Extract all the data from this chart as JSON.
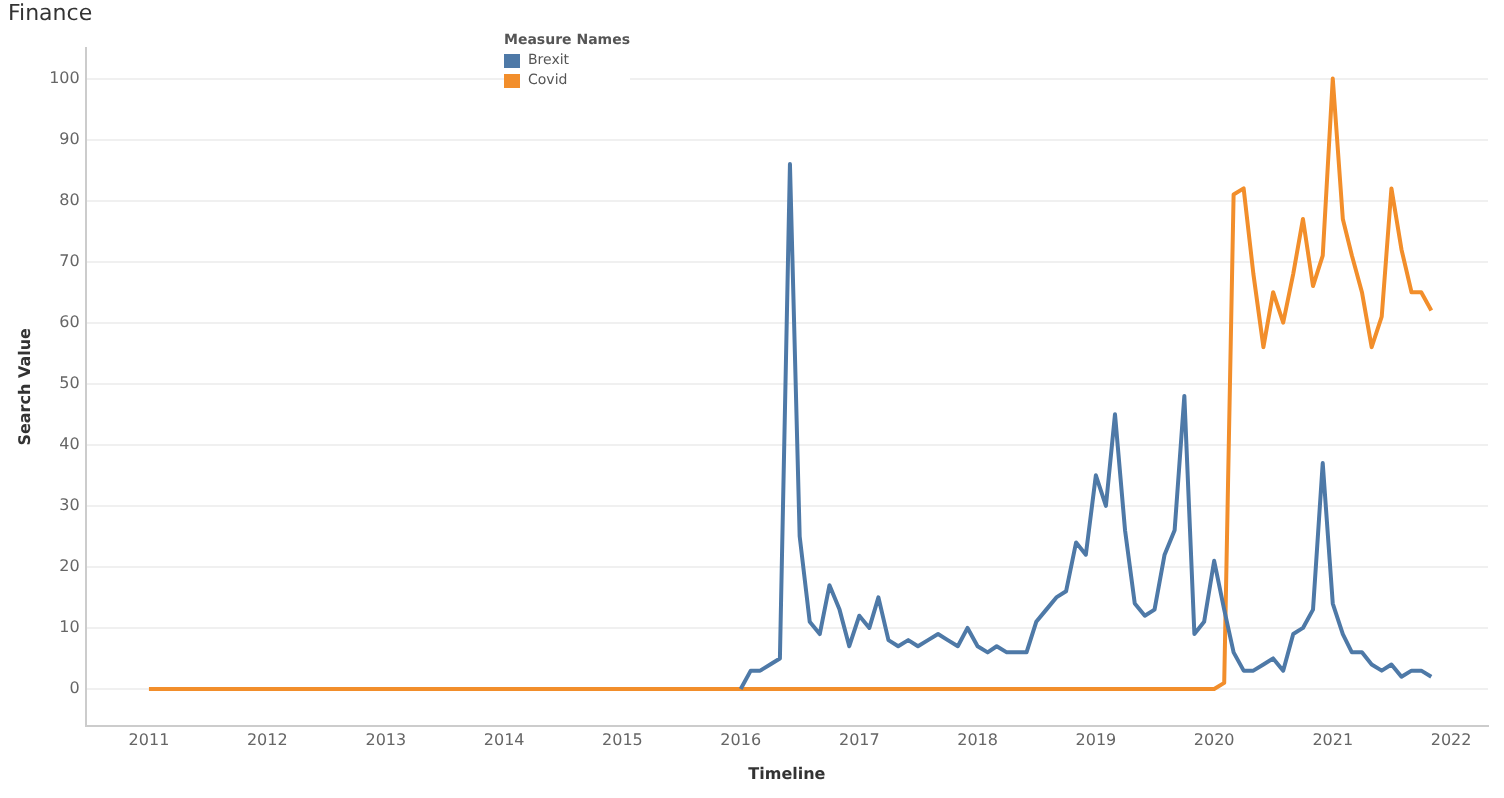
{
  "chart_data": {
    "type": "line",
    "title": "Finance",
    "xlabel": "Timeline",
    "ylabel": "Search Value",
    "legend_title": "Measure Names",
    "legend": "top left",
    "grid": "y",
    "marker": "none",
    "line_style": "solid",
    "xlim": [
      "2010-06-20",
      "2022-04-25"
    ],
    "xticks": [
      "2011",
      "2012",
      "2013",
      "2014",
      "2015",
      "2016",
      "2017",
      "2018",
      "2019",
      "2020",
      "2021",
      "2022"
    ],
    "ylim": [
      -6,
      105
    ],
    "yticks": [
      0,
      10,
      20,
      30,
      40,
      50,
      60,
      70,
      80,
      90,
      100
    ],
    "series": [
      {
        "name": "Brexit",
        "color": "#4e79a7",
        "x": [
          "2016-01",
          "2016-02",
          "2016-03",
          "2016-04",
          "2016-05",
          "2016-06",
          "2016-07",
          "2016-08",
          "2016-09",
          "2016-10",
          "2016-11",
          "2016-12",
          "2017-01",
          "2017-02",
          "2017-03",
          "2017-04",
          "2017-05",
          "2017-06",
          "2017-07",
          "2017-08",
          "2017-09",
          "2017-10",
          "2017-11",
          "2017-12",
          "2018-01",
          "2018-02",
          "2018-03",
          "2018-04",
          "2018-05",
          "2018-06",
          "2018-07",
          "2018-08",
          "2018-09",
          "2018-10",
          "2018-11",
          "2018-12",
          "2019-01",
          "2019-02",
          "2019-03",
          "2019-04",
          "2019-05",
          "2019-06",
          "2019-07",
          "2019-08",
          "2019-09",
          "2019-10",
          "2019-11",
          "2019-12",
          "2020-01",
          "2020-02",
          "2020-03",
          "2020-04",
          "2020-05",
          "2020-06",
          "2020-07",
          "2020-08",
          "2020-09",
          "2020-10",
          "2020-11",
          "2020-12",
          "2021-01",
          "2021-02",
          "2021-03",
          "2021-04",
          "2021-05",
          "2021-06",
          "2021-07",
          "2021-08",
          "2021-09",
          "2021-10",
          "2021-11"
        ],
        "values": [
          0,
          3,
          3,
          4,
          5,
          86,
          25,
          11,
          9,
          17,
          13,
          7,
          12,
          10,
          15,
          8,
          7,
          8,
          7,
          8,
          9,
          8,
          7,
          10,
          7,
          6,
          7,
          6,
          6,
          6,
          11,
          13,
          15,
          16,
          24,
          22,
          35,
          30,
          45,
          26,
          14,
          12,
          13,
          22,
          26,
          48,
          9,
          11,
          21,
          13,
          6,
          3,
          3,
          4,
          5,
          3,
          9,
          10,
          13,
          37,
          14,
          9,
          6,
          6,
          4,
          3,
          4,
          2,
          3,
          3,
          2
        ]
      },
      {
        "name": "Covid",
        "color": "#f28e2b",
        "x": [
          "2011-01",
          "2020-01",
          "2020-02",
          "2020-03",
          "2020-04",
          "2020-05",
          "2020-06",
          "2020-07",
          "2020-08",
          "2020-09",
          "2020-10",
          "2020-11",
          "2020-12",
          "2021-01",
          "2021-02",
          "2021-03",
          "2021-04",
          "2021-05",
          "2021-06",
          "2021-07",
          "2021-08",
          "2021-09",
          "2021-10",
          "2021-11"
        ],
        "values": [
          0,
          0,
          1,
          81,
          82,
          68,
          56,
          65,
          60,
          68,
          77,
          66,
          71,
          100,
          77,
          71,
          65,
          56,
          61,
          82,
          72,
          65,
          65,
          62
        ]
      }
    ]
  }
}
